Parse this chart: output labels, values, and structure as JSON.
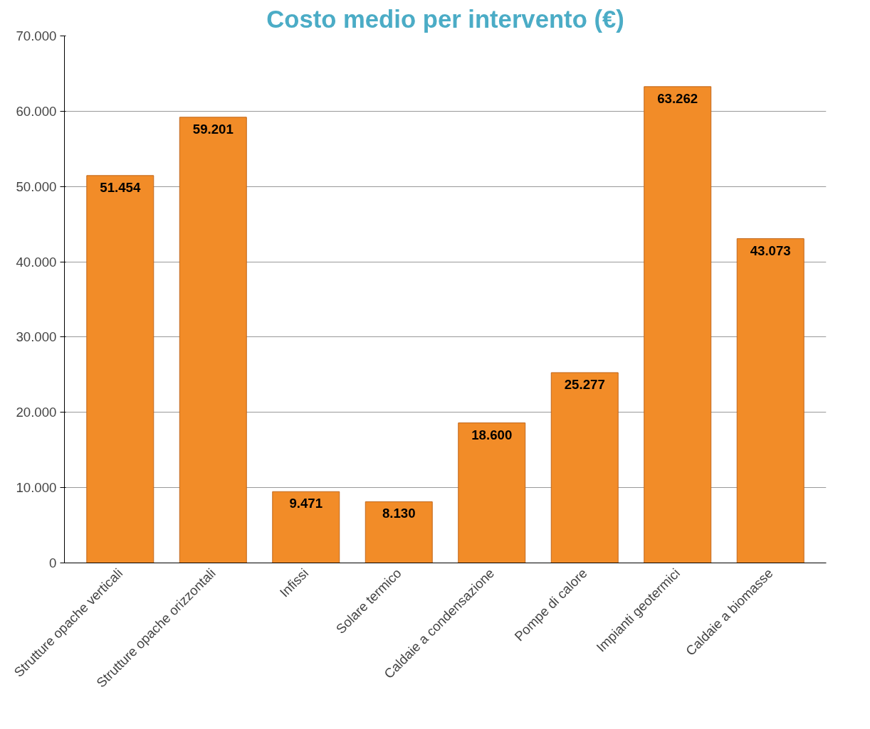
{
  "chart_data": {
    "type": "bar",
    "title": "Costo medio per intervento (€)",
    "categories": [
      "Strutture opache verticali",
      "Strutture opache orizzontali",
      "Infissi",
      "Solare termico",
      "Caldaie a condensazione",
      "Pompe di calore",
      "Impianti geotermici",
      "Caldaie a biomasse"
    ],
    "values": [
      51454,
      59201,
      9471,
      8130,
      18600,
      25277,
      63262,
      43073
    ],
    "value_labels": [
      "51.454",
      "59.201",
      "9.471",
      "8.130",
      "18.600",
      "25.277",
      "63.262",
      "43.073"
    ],
    "color": "#f28c28",
    "ylim": [
      0,
      70000
    ],
    "yticks": [
      {
        "value": 0,
        "label": "0"
      },
      {
        "value": 10000,
        "label": "10.000"
      },
      {
        "value": 20000,
        "label": "20.000"
      },
      {
        "value": 30000,
        "label": "30.000"
      },
      {
        "value": 40000,
        "label": "40.000"
      },
      {
        "value": 50000,
        "label": "50.000"
      },
      {
        "value": 60000,
        "label": "60.000"
      },
      {
        "value": 70000,
        "label": "70.000"
      }
    ],
    "grid": "y"
  }
}
